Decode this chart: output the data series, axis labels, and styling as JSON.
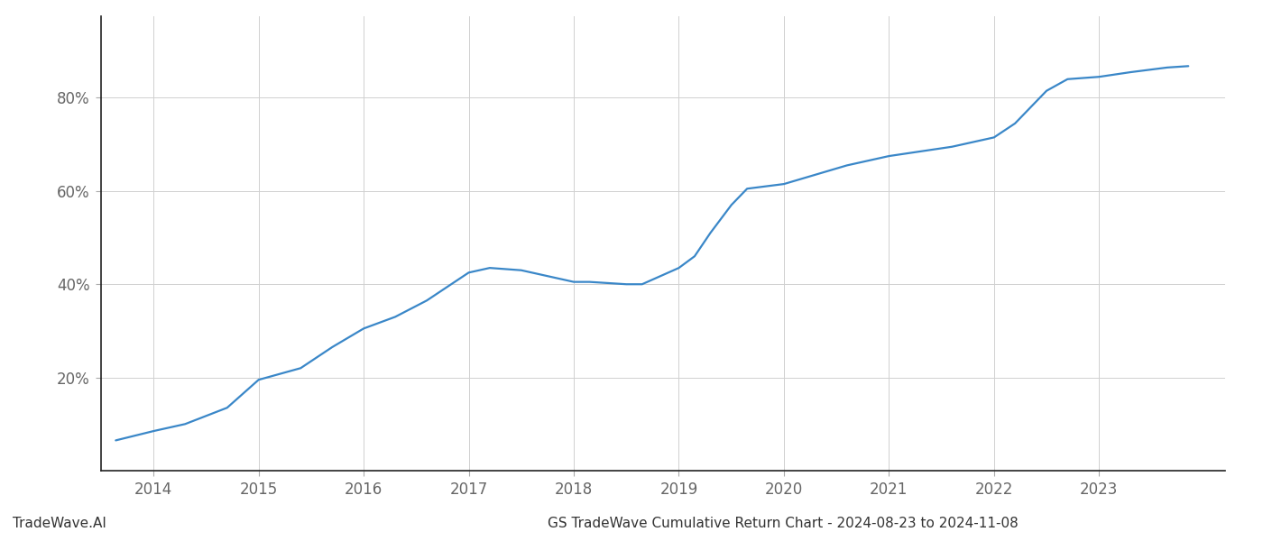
{
  "x_years": [
    2013.64,
    2014.0,
    2014.3,
    2014.7,
    2015.0,
    2015.4,
    2015.7,
    2016.0,
    2016.3,
    2016.6,
    2017.0,
    2017.2,
    2017.5,
    2017.8,
    2018.0,
    2018.15,
    2018.5,
    2018.65,
    2018.8,
    2019.0,
    2019.15,
    2019.3,
    2019.5,
    2019.65,
    2020.0,
    2020.3,
    2020.6,
    2020.8,
    2021.0,
    2021.3,
    2021.6,
    2021.8,
    2022.0,
    2022.2,
    2022.5,
    2022.7,
    2023.0,
    2023.3,
    2023.65,
    2023.85
  ],
  "y_values": [
    0.065,
    0.085,
    0.1,
    0.135,
    0.195,
    0.22,
    0.265,
    0.305,
    0.33,
    0.365,
    0.425,
    0.435,
    0.43,
    0.415,
    0.405,
    0.405,
    0.4,
    0.4,
    0.415,
    0.435,
    0.46,
    0.51,
    0.57,
    0.605,
    0.615,
    0.635,
    0.655,
    0.665,
    0.675,
    0.685,
    0.695,
    0.705,
    0.715,
    0.745,
    0.815,
    0.84,
    0.845,
    0.855,
    0.865,
    0.868
  ],
  "line_color": "#3a87c8",
  "line_width": 1.6,
  "title": "GS TradeWave Cumulative Return Chart - 2024-08-23 to 2024-11-08",
  "ytick_labels": [
    "20%",
    "40%",
    "60%",
    "80%"
  ],
  "ytick_values": [
    0.2,
    0.4,
    0.6,
    0.8
  ],
  "xtick_labels": [
    "2014",
    "2015",
    "2016",
    "2017",
    "2018",
    "2019",
    "2020",
    "2021",
    "2022",
    "2023"
  ],
  "xtick_values": [
    2014,
    2015,
    2016,
    2017,
    2018,
    2019,
    2020,
    2021,
    2022,
    2023
  ],
  "xlim": [
    2013.5,
    2024.2
  ],
  "ylim": [
    0.0,
    0.975
  ],
  "background_color": "#ffffff",
  "grid_color": "#d0d0d0",
  "watermark_text": "TradeWave.AI",
  "title_fontsize": 11,
  "tick_fontsize": 12,
  "watermark_fontsize": 11
}
